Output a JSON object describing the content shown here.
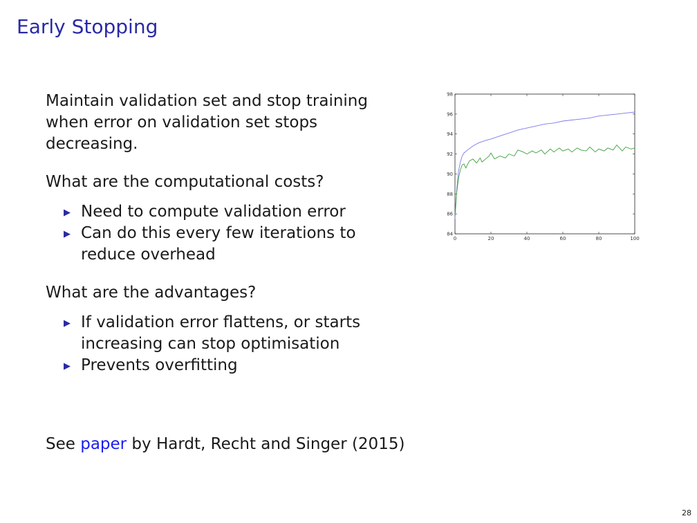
{
  "slide": {
    "title": "Early Stopping",
    "intro": "Maintain validation set and stop training when error on validation set stops decreasing.",
    "q1": "What are the computational costs?",
    "q1_bullets": [
      "Need to compute validation error",
      "Can do this every few iterations to reduce overhead"
    ],
    "q2": "What are the advantages?",
    "q2_bullets": [
      "If validation error flattens, or starts increasing can stop optimisation",
      "Prevents overfitting"
    ],
    "reference": {
      "prefix": "See ",
      "link": "paper",
      "suffix": " by Hardt, Recht and Singer (2015)"
    },
    "page_number": "28",
    "bullet_glyph": "▶"
  },
  "chart_data": {
    "type": "line",
    "xlim": [
      0,
      100
    ],
    "ylim": [
      84,
      98
    ],
    "x_ticks": [
      0,
      20,
      40,
      60,
      80,
      100
    ],
    "y_ticks": [
      84,
      86,
      88,
      90,
      92,
      94,
      96,
      98
    ],
    "grid": false,
    "series": [
      {
        "color": "#7a7ae8",
        "x": [
          0,
          1,
          2,
          3,
          4,
          5,
          7,
          10,
          13,
          16,
          20,
          25,
          30,
          35,
          40,
          45,
          50,
          55,
          60,
          65,
          70,
          75,
          80,
          85,
          90,
          95,
          100
        ],
        "y": [
          85.5,
          88.5,
          90.3,
          91.2,
          91.8,
          92.1,
          92.4,
          92.8,
          93.1,
          93.3,
          93.5,
          93.8,
          94.1,
          94.4,
          94.6,
          94.8,
          95.0,
          95.1,
          95.3,
          95.4,
          95.5,
          95.6,
          95.8,
          95.9,
          96.0,
          96.1,
          96.2
        ]
      },
      {
        "color": "#3f9f3f",
        "x": [
          0,
          1,
          2,
          3,
          4,
          5,
          6,
          8,
          10,
          12,
          14,
          15,
          17,
          19,
          20,
          22,
          25,
          28,
          30,
          33,
          35,
          38,
          40,
          43,
          45,
          48,
          50,
          53,
          55,
          58,
          60,
          63,
          65,
          68,
          70,
          73,
          75,
          78,
          80,
          83,
          85,
          88,
          90,
          93,
          95,
          98,
          100
        ],
        "y": [
          86.0,
          88.2,
          89.6,
          90.4,
          90.9,
          91.0,
          90.6,
          91.3,
          91.5,
          91.1,
          91.6,
          91.2,
          91.5,
          91.8,
          92.1,
          91.5,
          91.8,
          91.6,
          92.0,
          91.8,
          92.4,
          92.2,
          92.0,
          92.3,
          92.1,
          92.4,
          92.0,
          92.5,
          92.2,
          92.6,
          92.3,
          92.5,
          92.2,
          92.6,
          92.4,
          92.3,
          92.7,
          92.2,
          92.5,
          92.3,
          92.6,
          92.4,
          92.9,
          92.3,
          92.7,
          92.5,
          92.6
        ]
      }
    ]
  }
}
